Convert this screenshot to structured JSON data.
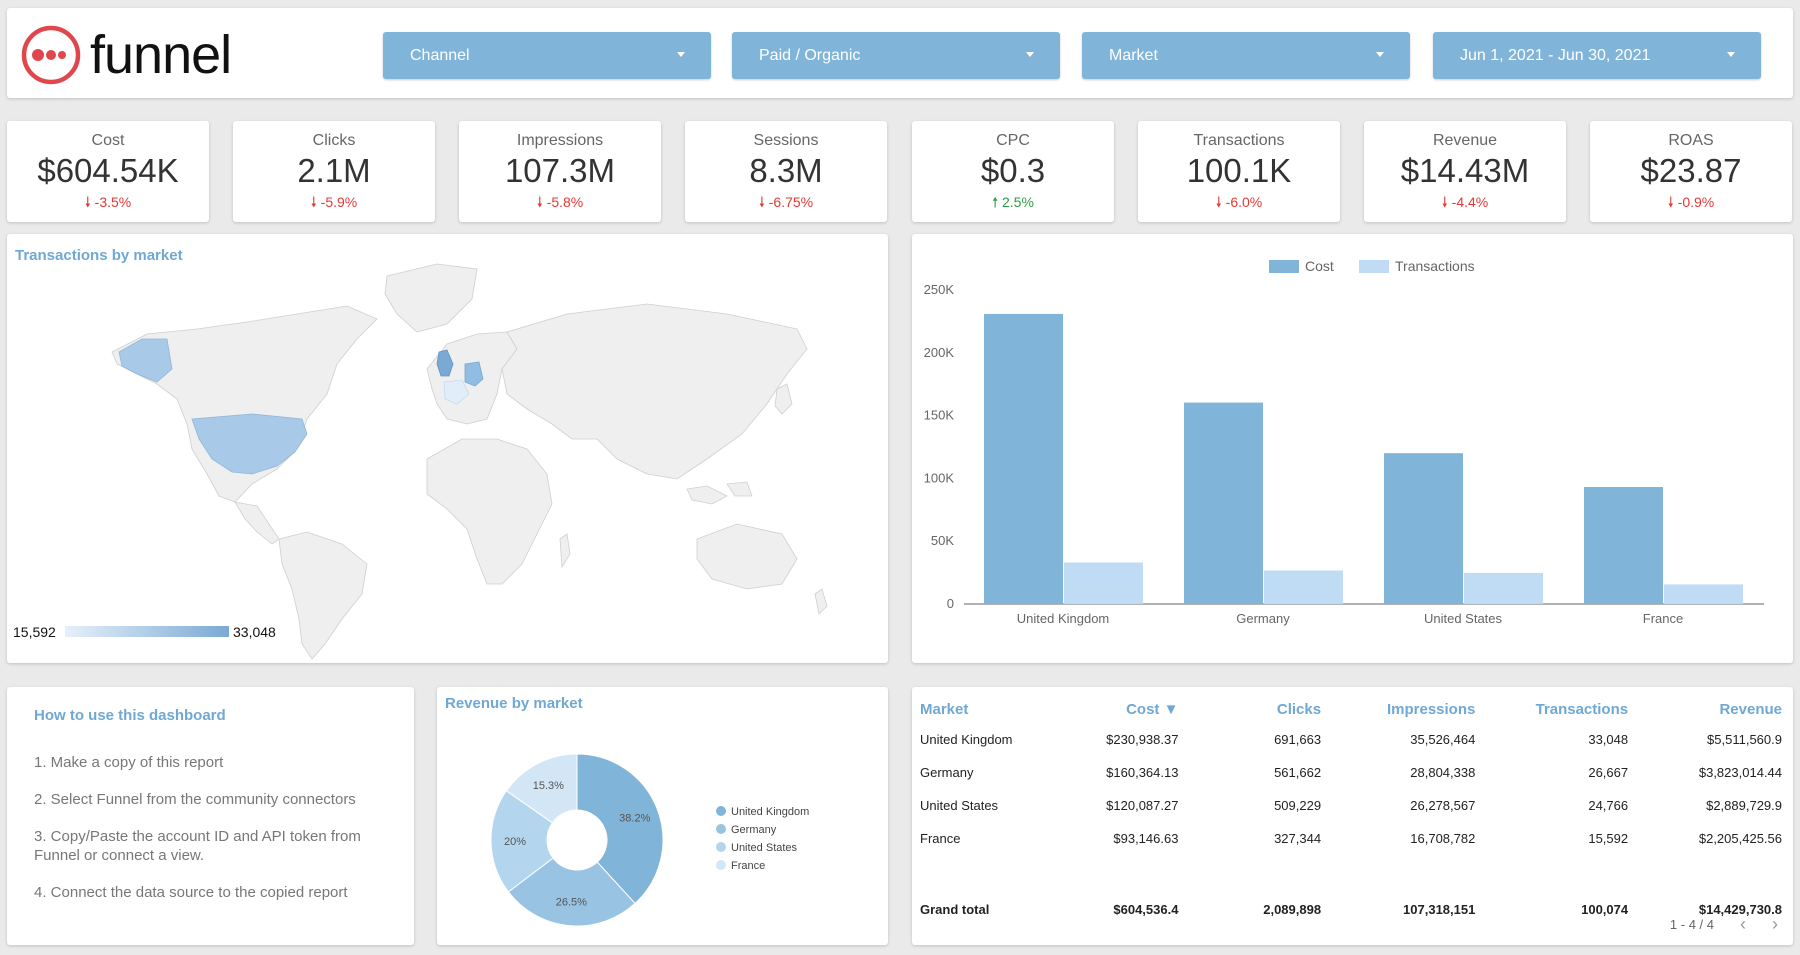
{
  "header": {
    "logo_text": "funnel",
    "filters": [
      {
        "label": "Channel"
      },
      {
        "label": "Paid / Organic"
      },
      {
        "label": "Market"
      },
      {
        "label": "Jun 1, 2021 - Jun 30, 2021"
      }
    ]
  },
  "kpis": [
    {
      "label": "Cost",
      "value": "$604.54K",
      "delta": "-3.5%",
      "direction": "down"
    },
    {
      "label": "Clicks",
      "value": "2.1M",
      "delta": "-5.9%",
      "direction": "down"
    },
    {
      "label": "Impressions",
      "value": "107.3M",
      "delta": "-5.8%",
      "direction": "down"
    },
    {
      "label": "Sessions",
      "value": "8.3M",
      "delta": "-6.75%",
      "direction": "down"
    },
    {
      "label": "CPC",
      "value": "$0.3",
      "delta": "2.5%",
      "direction": "up"
    },
    {
      "label": "Transactions",
      "value": "100.1K",
      "delta": "-6.0%",
      "direction": "down"
    },
    {
      "label": "Revenue",
      "value": "$14.43M",
      "delta": "-4.4%",
      "direction": "down"
    },
    {
      "label": "ROAS",
      "value": "$23.87",
      "delta": "-0.9%",
      "direction": "down"
    }
  ],
  "map": {
    "title": "Transactions by market",
    "scale_min": "15,592",
    "scale_max": "33,048"
  },
  "howto": {
    "title": "How to use this dashboard",
    "steps": [
      "1. Make a copy of this report",
      "2. Select Funnel from the community connectors",
      "3. Copy/Paste the account ID and API token from Funnel or connect a view.",
      "4. Connect the data source to the copied report"
    ]
  },
  "table": {
    "headers": [
      "Market",
      "Cost ▼",
      "Clicks",
      "Impressions",
      "Transactions",
      "Revenue"
    ],
    "rows": [
      [
        "United Kingdom",
        "$230,938.37",
        "691,663",
        "35,526,464",
        "33,048",
        "$5,511,560.9"
      ],
      [
        "Germany",
        "$160,364.13",
        "561,662",
        "28,804,338",
        "26,667",
        "$3,823,014.44"
      ],
      [
        "United States",
        "$120,087.27",
        "509,229",
        "26,278,567",
        "24,766",
        "$2,889,729.9"
      ],
      [
        "France",
        "$93,146.63",
        "327,344",
        "16,708,782",
        "15,592",
        "$2,205,425.56"
      ]
    ],
    "total": [
      "Grand total",
      "$604,536.4",
      "2,089,898",
      "107,318,151",
      "100,074",
      "$14,429,730.8"
    ],
    "pagination": "1 - 4 / 4"
  },
  "colors": {
    "accent": "#80b4d8",
    "title_blue": "#6fa8d4",
    "cost_bar": "#80b4d8",
    "transactions_bar": "#c0dcf5",
    "down": "#e53935",
    "up": "#2e9e44",
    "logo_red": "#e0474c"
  },
  "chart_data": [
    {
      "type": "bar",
      "categories": [
        "United Kingdom",
        "Germany",
        "United States",
        "France"
      ],
      "series": [
        {
          "name": "Cost",
          "values": [
            230938,
            160364,
            120087,
            93147
          ],
          "color": "#80b4d8"
        },
        {
          "name": "Transactions",
          "values": [
            33048,
            26667,
            24766,
            15592
          ],
          "color": "#c0dcf5"
        }
      ],
      "ylim": [
        0,
        250000
      ],
      "yticks": [
        0,
        50000,
        100000,
        150000,
        200000,
        250000
      ],
      "ytick_labels": [
        "0",
        "50K",
        "100K",
        "150K",
        "200K",
        "250K"
      ],
      "legend_position": "top",
      "grid": false
    },
    {
      "type": "pie",
      "title": "Revenue by market",
      "donut": true,
      "labels": [
        "United Kingdom",
        "Germany",
        "United States",
        "France"
      ],
      "values": [
        38.2,
        26.5,
        20,
        15.3
      ],
      "value_labels": [
        "38.2%",
        "26.5%",
        "20%",
        "15.3%"
      ],
      "colors": [
        "#80b4d8",
        "#98c3e3",
        "#b4d5ee",
        "#d3e6f6"
      ],
      "legend_position": "right"
    }
  ]
}
